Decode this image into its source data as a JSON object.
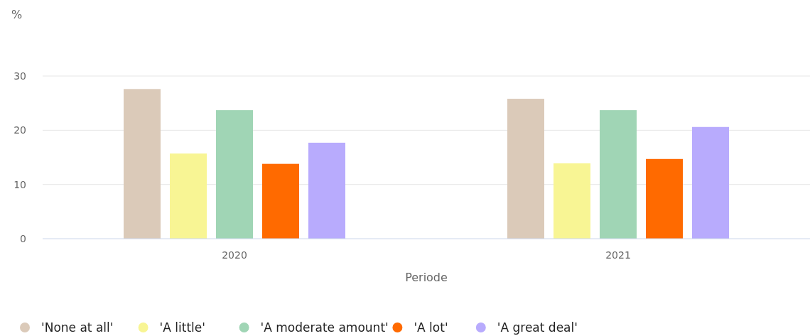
{
  "chart_data": {
    "type": "bar",
    "ylabel": "%",
    "xlabel": "Periode",
    "categories": [
      "2020",
      "2021"
    ],
    "series": [
      {
        "name": "'None at all'",
        "color": "#dbcab9",
        "values": [
          27.6,
          25.8
        ]
      },
      {
        "name": "'A little'",
        "color": "#f8f594",
        "values": [
          15.7,
          13.9
        ]
      },
      {
        "name": "'A moderate amount'",
        "color": "#a0d5b5",
        "values": [
          23.7,
          23.7
        ]
      },
      {
        "name": "'A lot'",
        "color": "#ff6a00",
        "values": [
          13.8,
          14.7
        ]
      },
      {
        "name": "'A great deal'",
        "color": "#b8abfd",
        "values": [
          17.7,
          20.6
        ]
      }
    ],
    "ylim": [
      0,
      30
    ],
    "yticks": [
      0,
      10,
      20,
      30
    ],
    "grid": "y",
    "legend": "bottom left"
  }
}
